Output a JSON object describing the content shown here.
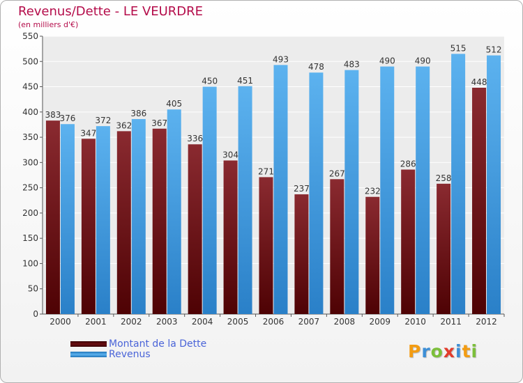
{
  "title": "Revenus/Dette - LE VEURDRE",
  "subtitle": "(en milliers d'€)",
  "legend": {
    "items": [
      {
        "label": "Montant de la Dette",
        "color": "#6b0d12"
      },
      {
        "label": "Revenus",
        "color": "#3f9ee0"
      }
    ]
  },
  "logo": {
    "text": "Proxiti",
    "colors": [
      "#f39c12",
      "#3d8fd6",
      "#7cbf3a",
      "#e23c2c",
      "#3d8fd6",
      "#f39c12",
      "#7cbf3a"
    ]
  },
  "chart_data": {
    "type": "bar",
    "title": "Revenus/Dette - LE VEURDRE",
    "subtitle": "(en milliers d'€)",
    "categories": [
      "2000",
      "2001",
      "2002",
      "2003",
      "2004",
      "2005",
      "2006",
      "2007",
      "2008",
      "2009",
      "2010",
      "2011",
      "2012"
    ],
    "series": [
      {
        "name": "Montant de la Dette",
        "color": "#6b0d12",
        "values": [
          383,
          347,
          362,
          367,
          336,
          304,
          271,
          237,
          267,
          232,
          286,
          258,
          448
        ]
      },
      {
        "name": "Revenus",
        "color": "#3f9ee0",
        "values": [
          376,
          372,
          386,
          405,
          450,
          451,
          493,
          478,
          483,
          490,
          490,
          515,
          512
        ]
      }
    ],
    "ylim": [
      0,
      550
    ],
    "yticks": [
      0,
      50,
      100,
      150,
      200,
      250,
      300,
      350,
      400,
      450,
      500,
      550
    ],
    "grid": true,
    "legend_position": "bottom-left"
  }
}
